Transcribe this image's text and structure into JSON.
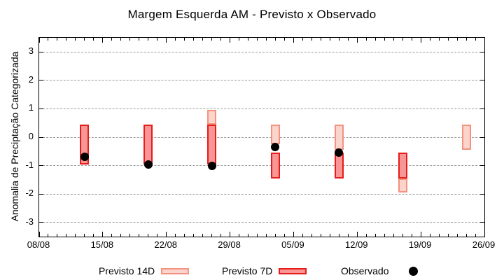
{
  "chart_data": {
    "type": "bar",
    "title": "Margem Esquerda AM - Previsto x Observado",
    "ylabel": "Anomalia de Preciptação Categorizada",
    "xlabel": "",
    "ylim": [
      -3.5,
      3.5
    ],
    "yticks": [
      3,
      2,
      1,
      0,
      -1,
      -2,
      -3
    ],
    "grid": "horizontal-dashed",
    "x_axis": {
      "days_total": 49,
      "minor_step_days": 1,
      "major_tick_days": [
        0,
        7,
        14,
        21,
        28,
        35,
        42,
        49
      ],
      "major_labels": [
        "08/08",
        "15/08",
        "22/08",
        "29/08",
        "05/09",
        "12/09",
        "19/09",
        "26/09"
      ]
    },
    "series": [
      {
        "name": "Previsto 14D",
        "type": "range-bar",
        "fill": "#fbd4cb",
        "border": "#f2927f",
        "points": [
          {
            "date": "27/08",
            "day": 19,
            "from": 0.45,
            "to": 0.95
          },
          {
            "date": "03/09",
            "day": 26,
            "from": -0.25,
            "to": 0.45
          },
          {
            "date": "10/09",
            "day": 33,
            "from": -0.45,
            "to": 0.45
          },
          {
            "date": "17/09",
            "day": 40,
            "from": -1.95,
            "to": -1.45
          },
          {
            "date": "24/09",
            "day": 47,
            "from": -0.45,
            "to": 0.45
          }
        ]
      },
      {
        "name": "Previsto 7D",
        "type": "range-bar",
        "fill": "#f89595",
        "border": "#e81b1b",
        "points": [
          {
            "date": "13/08",
            "day": 5,
            "from": -0.95,
            "to": 0.45
          },
          {
            "date": "20/08",
            "day": 12,
            "from": -0.95,
            "to": 0.45
          },
          {
            "date": "27/08",
            "day": 19,
            "from": -0.95,
            "to": 0.45
          },
          {
            "date": "03/09",
            "day": 26,
            "from": -1.45,
            "to": -0.55
          },
          {
            "date": "10/09",
            "day": 33,
            "from": -1.45,
            "to": -0.55
          },
          {
            "date": "17/09",
            "day": 40,
            "from": -1.45,
            "to": -0.55
          }
        ]
      },
      {
        "name": "Observado",
        "type": "scatter",
        "color": "#000000",
        "points": [
          {
            "date": "13/08",
            "day": 5,
            "value": -0.7
          },
          {
            "date": "20/08",
            "day": 12,
            "value": -0.95
          },
          {
            "date": "27/08",
            "day": 19,
            "value": -1.0
          },
          {
            "date": "03/09",
            "day": 26,
            "value": -0.35
          },
          {
            "date": "10/09",
            "day": 33,
            "value": -0.55
          }
        ]
      }
    ],
    "legend": {
      "position": "bottom",
      "items": [
        {
          "label": "Previsto 14D",
          "swatch": "range-bar",
          "fill": "#fbd4cb",
          "border": "#f2927f"
        },
        {
          "label": "Previsto 7D",
          "swatch": "range-bar",
          "fill": "#f89595",
          "border": "#e81b1b"
        },
        {
          "label": "Observado",
          "swatch": "dot",
          "color": "#000000"
        }
      ]
    },
    "colors": {
      "grid": "#9a9a9a",
      "axis": "#000000",
      "text": "#000000"
    }
  }
}
